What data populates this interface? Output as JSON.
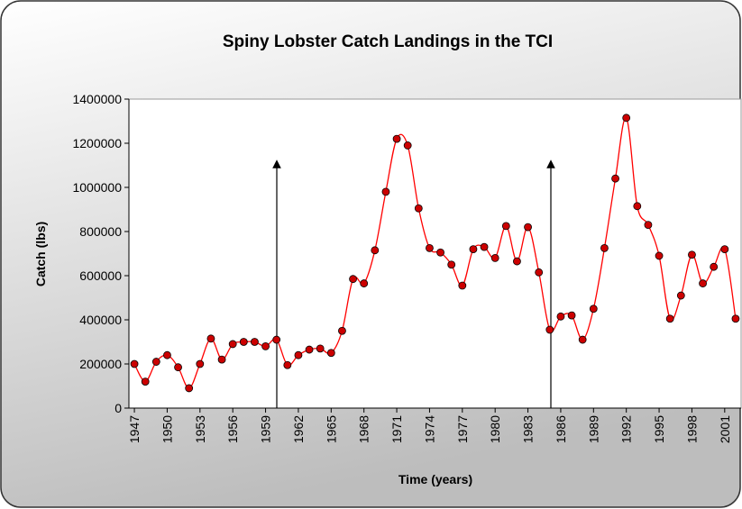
{
  "chart_data": {
    "type": "line",
    "title": "Spiny Lobster Catch Landings in the TCI",
    "x_label": "Time (years)",
    "y_label": "Catch (lbs)",
    "x": [
      1947,
      1948,
      1949,
      1950,
      1951,
      1952,
      1953,
      1954,
      1955,
      1956,
      1957,
      1958,
      1959,
      1960,
      1961,
      1962,
      1963,
      1964,
      1965,
      1966,
      1967,
      1968,
      1969,
      1970,
      1971,
      1972,
      1973,
      1974,
      1975,
      1976,
      1977,
      1978,
      1979,
      1980,
      1981,
      1982,
      1983,
      1984,
      1985,
      1986,
      1987,
      1988,
      1989,
      1990,
      1991,
      1992,
      1993,
      1994,
      1995,
      1996,
      1997,
      1998,
      1999,
      2000,
      2001,
      2002
    ],
    "series": [
      {
        "color": "#ff0000",
        "marker_color": "#cc0000",
        "values": [
          200000,
          120000,
          210000,
          240000,
          185000,
          90000,
          200000,
          315000,
          220000,
          290000,
          300000,
          300000,
          280000,
          310000,
          195000,
          240000,
          265000,
          270000,
          250000,
          350000,
          585000,
          565000,
          715000,
          980000,
          1220000,
          1190000,
          905000,
          725000,
          705000,
          650000,
          555000,
          720000,
          730000,
          680000,
          825000,
          665000,
          820000,
          615000,
          355000,
          415000,
          420000,
          310000,
          450000,
          725000,
          1040000,
          1315000,
          915000,
          830000,
          690000,
          405000,
          510000,
          695000,
          565000,
          640000,
          720000,
          405000
        ]
      }
    ],
    "xlim": [
      1946.5,
      2002.5
    ],
    "xticks": [
      1947,
      1950,
      1953,
      1956,
      1959,
      1962,
      1965,
      1968,
      1971,
      1974,
      1977,
      1980,
      1983,
      1986,
      1989,
      1992,
      1995,
      1998,
      2001
    ],
    "ylim": [
      0,
      1400000
    ],
    "yticks": [
      0,
      200000,
      400000,
      600000,
      800000,
      1000000,
      1200000,
      1400000
    ],
    "grid": false
  }
}
